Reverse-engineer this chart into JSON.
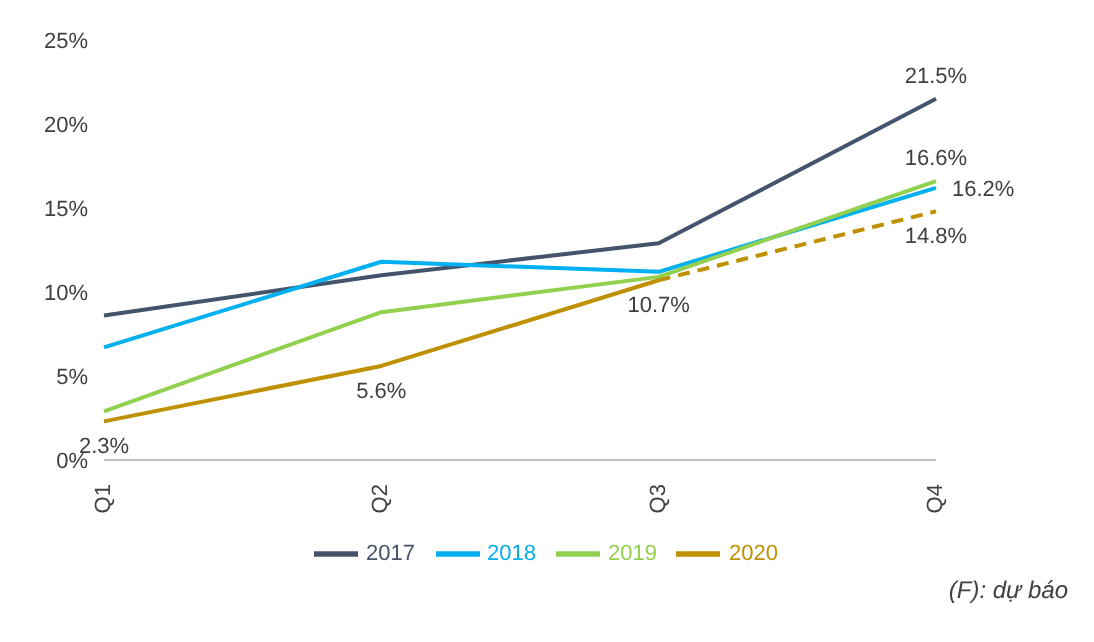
{
  "chart_data": {
    "type": "line",
    "categories": [
      "Q1",
      "Q2",
      "Q3",
      "Q4"
    ],
    "series": [
      {
        "name": "2017",
        "color": "#44546a",
        "values": [
          8.6,
          11.0,
          12.9,
          21.5
        ],
        "value_labels": [
          null,
          null,
          null,
          "21.5%"
        ]
      },
      {
        "name": "2018",
        "color": "#00b0f0",
        "values": [
          6.7,
          11.8,
          11.2,
          16.2
        ],
        "value_labels": [
          null,
          null,
          null,
          "16.2%"
        ]
      },
      {
        "name": "2019",
        "color": "#92d050",
        "values": [
          2.9,
          8.8,
          10.9,
          16.6
        ],
        "value_labels": [
          null,
          null,
          null,
          "16.6%"
        ]
      },
      {
        "name": "2020",
        "color": "#bf9000",
        "values": [
          2.3,
          5.6,
          10.7,
          null
        ],
        "value_labels": [
          "2.3%",
          "5.6%",
          "10.7%",
          null
        ]
      },
      {
        "color": "#bf9000",
        "values": [
          null,
          null,
          10.7,
          14.8
        ],
        "value_labels": [
          null,
          null,
          null,
          "14.8%"
        ],
        "line_style": "dashed"
      }
    ],
    "ylim": [
      0,
      25
    ],
    "yticks": [
      {
        "value": 0,
        "label": "0%"
      },
      {
        "value": 5,
        "label": "5%"
      },
      {
        "value": 10,
        "label": "10%"
      },
      {
        "value": 15,
        "label": "15%"
      },
      {
        "value": 20,
        "label": "20%"
      },
      {
        "value": 25,
        "label": "25%"
      }
    ],
    "grid": false,
    "legend": "bottom",
    "marker": "none",
    "line_style": "solid",
    "annotations": [
      "(F): dự báo"
    ]
  }
}
